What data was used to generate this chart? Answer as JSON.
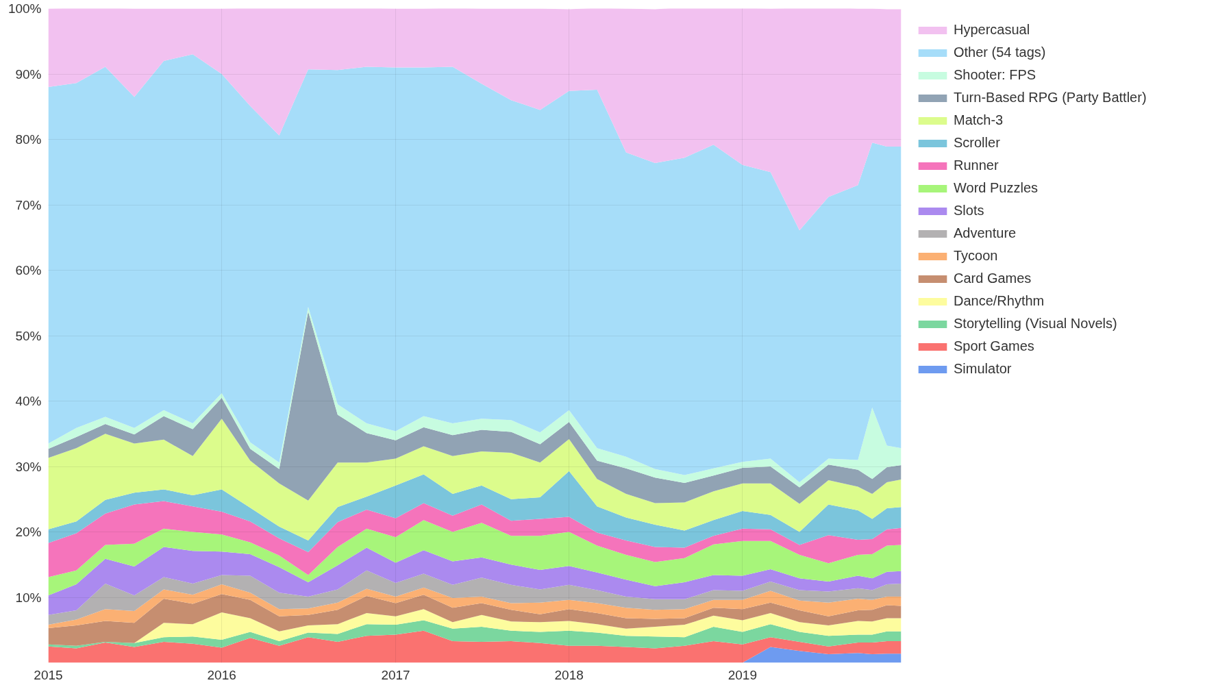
{
  "chart_data": {
    "type": "area",
    "stacked": true,
    "grid": true,
    "legend": "top right",
    "x": [
      "2015-01",
      "2015-03",
      "2015-05",
      "2015-07",
      "2015-09",
      "2015-11",
      "2016-01",
      "2016-03",
      "2016-05",
      "2016-07",
      "2016-09",
      "2016-11",
      "2017-01",
      "2017-03",
      "2017-05",
      "2017-07",
      "2017-09",
      "2017-11",
      "2018-01",
      "2018-03",
      "2018-05",
      "2018-07",
      "2018-09",
      "2018-11",
      "2019-01",
      "2019-03",
      "2019-05",
      "2019-07",
      "2019-09",
      "2019-10",
      "2019-11",
      "2019-12"
    ],
    "xlim": [
      "2015-01",
      "2019-12"
    ],
    "xticks": [
      "2015",
      "2016",
      "2017",
      "2018",
      "2019"
    ],
    "ylim": [
      0,
      100
    ],
    "yticks": [
      {
        "value": 10,
        "label": "10%"
      },
      {
        "value": 20,
        "label": "20%"
      },
      {
        "value": 30,
        "label": "30%"
      },
      {
        "value": 40,
        "label": "40%"
      },
      {
        "value": 50,
        "label": "50%"
      },
      {
        "value": 60,
        "label": "60%"
      },
      {
        "value": 70,
        "label": "70%"
      },
      {
        "value": 80,
        "label": "80%"
      },
      {
        "value": 90,
        "label": "90%"
      },
      {
        "value": 100,
        "label": "100%"
      }
    ],
    "series": [
      {
        "name": "Simulator",
        "color": "#6e9bf0",
        "values": [
          0,
          0,
          0,
          0,
          0,
          0,
          0,
          0,
          0,
          0,
          0,
          0,
          0,
          0,
          0,
          0,
          0,
          0,
          0,
          0,
          0,
          0,
          0,
          0,
          0,
          2.4,
          1.8,
          1.3,
          1.5,
          1.3,
          1.4,
          1.4
        ]
      },
      {
        "name": "Sport Games",
        "color": "#fa7270",
        "values": [
          2.5,
          2.2,
          3.1,
          2.4,
          3.2,
          2.9,
          2.3,
          3.8,
          2.6,
          3.9,
          3.2,
          4.1,
          4.3,
          4.9,
          3.3,
          3.2,
          3.3,
          3.0,
          2.6,
          2.6,
          2.4,
          2.2,
          2.6,
          3.3,
          2.8,
          1.5,
          1.4,
          1.2,
          1.6,
          1.8,
          1.9,
          1.9
        ]
      },
      {
        "name": "Storytelling (Visual Novels)",
        "color": "#7bd79f",
        "values": [
          0.3,
          0.4,
          0.1,
          0.6,
          0.7,
          1.1,
          1.2,
          0.9,
          0.7,
          0.7,
          1.2,
          1.8,
          1.5,
          1.6,
          1.9,
          2.3,
          1.6,
          1.7,
          2.3,
          2.0,
          1.7,
          1.8,
          1.3,
          2.2,
          1.9,
          2.0,
          1.5,
          1.6,
          1.2,
          1.2,
          1.5,
          1.5
        ]
      },
      {
        "name": "Dance/Rhythm",
        "color": "#fdfc9e",
        "values": [
          0,
          0,
          0,
          0,
          2.2,
          1.9,
          4.2,
          2.1,
          1.5,
          1.1,
          1.5,
          1.7,
          1.3,
          1.7,
          1.0,
          1.8,
          1.4,
          1.5,
          1.5,
          1.3,
          1.1,
          1.5,
          1.9,
          1.7,
          1.8,
          1.7,
          1.5,
          1.6,
          2.1,
          2.0,
          2.0,
          2.0
        ]
      },
      {
        "name": "Card Games",
        "color": "#c68e70",
        "values": [
          2.5,
          3.1,
          3.2,
          3.1,
          3.7,
          3.1,
          2.8,
          2.8,
          2.3,
          1.6,
          2.2,
          2.6,
          2.0,
          2.2,
          2.2,
          1.8,
          1.8,
          1.2,
          1.8,
          1.7,
          1.6,
          1.2,
          1.0,
          1.2,
          1.7,
          1.6,
          1.8,
          1.4,
          1.6,
          1.8,
          2.0,
          1.9
        ]
      },
      {
        "name": "Tycoon",
        "color": "#fbb073",
        "values": [
          0.5,
          0.9,
          1.8,
          1.8,
          1.4,
          1.4,
          1.5,
          1.1,
          1.1,
          1.0,
          1.1,
          1.1,
          1.0,
          1.1,
          1.5,
          1.0,
          1.0,
          1.8,
          1.4,
          1.5,
          1.6,
          1.4,
          1.4,
          1.2,
          1.4,
          1.8,
          1.5,
          2.1,
          1.8,
          1.5,
          1.3,
          1.4
        ]
      },
      {
        "name": "Adventure",
        "color": "#b3b1b2",
        "values": [
          1.5,
          1.4,
          3.9,
          2.4,
          1.9,
          1.7,
          1.4,
          2.6,
          2.5,
          1.8,
          2.0,
          2.8,
          2.1,
          2.1,
          2.0,
          2.9,
          2.8,
          2.0,
          2.3,
          2.0,
          1.7,
          1.6,
          1.5,
          1.5,
          1.4,
          1.4,
          1.6,
          1.7,
          1.6,
          1.5,
          1.9,
          2.0
        ]
      },
      {
        "name": "Slots",
        "color": "#ab8aef",
        "values": [
          3.0,
          4.0,
          3.8,
          4.4,
          4.6,
          5.0,
          3.6,
          3.3,
          3.9,
          2.2,
          3.7,
          3.5,
          3.1,
          3.6,
          3.6,
          3.1,
          3.1,
          3.0,
          2.9,
          2.7,
          2.6,
          2.0,
          2.6,
          2.3,
          2.3,
          1.9,
          1.8,
          1.5,
          1.9,
          1.8,
          1.9,
          1.9
        ]
      },
      {
        "name": "Word Puzzles",
        "color": "#a7f57a",
        "values": [
          2.8,
          2.1,
          2.1,
          3.5,
          2.8,
          2.9,
          2.6,
          1.8,
          1.8,
          1.1,
          2.8,
          2.9,
          3.9,
          4.6,
          4.5,
          5.3,
          4.4,
          5.2,
          5.2,
          4.1,
          3.8,
          3.7,
          3.7,
          4.7,
          5.3,
          4.3,
          3.6,
          2.8,
          3.2,
          3.7,
          4.0,
          4.0
        ]
      },
      {
        "name": "Runner",
        "color": "#f574bb",
        "values": [
          5.2,
          5.7,
          4.8,
          6.0,
          4.2,
          3.9,
          3.5,
          3.2,
          2.6,
          3.5,
          3.8,
          2.9,
          2.9,
          2.6,
          2.5,
          2.8,
          2.3,
          2.6,
          2.3,
          2.0,
          2.2,
          2.3,
          1.6,
          1.3,
          1.9,
          1.8,
          1.5,
          4.3,
          2.3,
          2.3,
          2.5,
          2.6
        ]
      },
      {
        "name": "Scroller",
        "color": "#7bc5dc",
        "values": [
          2.1,
          1.8,
          2.1,
          1.8,
          1.8,
          1.7,
          3.4,
          2.1,
          1.8,
          1.8,
          2.3,
          2.0,
          5.0,
          4.4,
          3.3,
          2.9,
          3.3,
          3.3,
          7.0,
          4.0,
          3.5,
          3.4,
          2.6,
          2.4,
          2.7,
          2.2,
          2.0,
          4.7,
          4.5,
          3.1,
          3.2,
          3.2
        ]
      },
      {
        "name": "Match-3",
        "color": "#dcfc8c",
        "values": [
          10.9,
          11.2,
          10.1,
          7.5,
          7.6,
          6.0,
          10.8,
          7.2,
          6.6,
          6.1,
          6.8,
          5.2,
          4.1,
          4.3,
          5.8,
          5.2,
          7.1,
          5.3,
          4.9,
          4.2,
          3.6,
          3.3,
          4.3,
          4.4,
          4.2,
          4.8,
          4.3,
          3.7,
          3.6,
          3.8,
          4.0,
          4.2
        ]
      },
      {
        "name": "Turn-Based RPG (Party Battler)",
        "color": "#91a3b4",
        "values": [
          1.4,
          1.7,
          1.5,
          1.4,
          3.6,
          4.1,
          3.2,
          1.8,
          2.2,
          28.9,
          7.3,
          4.5,
          2.8,
          2.9,
          3.2,
          3.3,
          3.2,
          2.8,
          2.6,
          2.8,
          3.9,
          3.9,
          3.0,
          2.4,
          2.4,
          2.6,
          2.5,
          2.4,
          2.6,
          2.3,
          2.3,
          2.2
        ]
      },
      {
        "name": "Shooter: FPS",
        "color": "#c7fce0",
        "values": [
          0.8,
          1.4,
          1.1,
          1.0,
          0.9,
          0.9,
          0.7,
          1.0,
          1.0,
          0.7,
          1.6,
          1.5,
          1.4,
          1.7,
          1.8,
          1.7,
          1.8,
          1.8,
          1.8,
          1.9,
          1.8,
          1.3,
          1.2,
          1.1,
          0.9,
          1.2,
          0.8,
          0.9,
          1.5,
          10.9,
          3.3,
          2.6
        ]
      },
      {
        "name": "Other (54 tags)",
        "color": "#a6ddf9",
        "values": [
          54.5,
          52.7,
          53.5,
          50.6,
          53.4,
          56.4,
          48.8,
          51.4,
          50.0,
          36.3,
          51.1,
          54.5,
          55.6,
          53.3,
          54.5,
          51.2,
          48.9,
          49.3,
          48.8,
          54.8,
          46.5,
          46.8,
          48.5,
          49.5,
          45.4,
          43.8,
          38.5,
          40.0,
          42.0,
          40.5,
          45.7,
          46.1
        ]
      },
      {
        "name": "Hypercasual",
        "color": "#f2c1f0",
        "values": [
          12,
          11.5,
          9,
          13.5,
          8,
          7,
          10,
          15,
          19.5,
          9.5,
          9.5,
          9,
          9,
          9,
          9,
          11.5,
          14,
          15.5,
          12.5,
          12.5,
          22,
          23.5,
          23,
          21,
          24,
          25,
          34,
          29,
          27,
          20.5,
          21,
          21
        ]
      }
    ]
  }
}
